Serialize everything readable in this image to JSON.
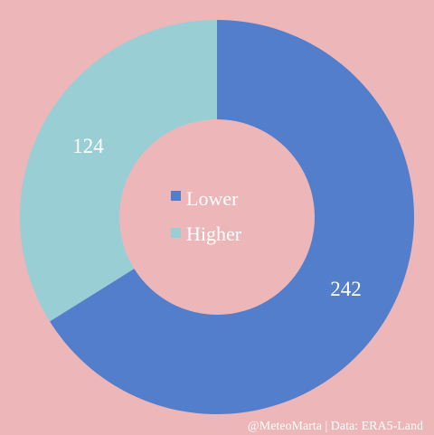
{
  "colors": {
    "background": "#edb6b8",
    "lower": "#537ecb",
    "higher": "#99ced5",
    "text_white": "#ffffff"
  },
  "chart_data": {
    "type": "pie",
    "variant": "donut",
    "start": "top, clockwise",
    "categories": [
      "Lower",
      "Higher"
    ],
    "values": [
      242,
      124
    ],
    "colors": [
      "#537ecb",
      "#99ced5"
    ],
    "legend": {
      "placement": "center",
      "entries": [
        "Lower",
        "Higher"
      ]
    },
    "title": "",
    "credit": "@MeteoMarta | Data: ERA5-Land"
  }
}
